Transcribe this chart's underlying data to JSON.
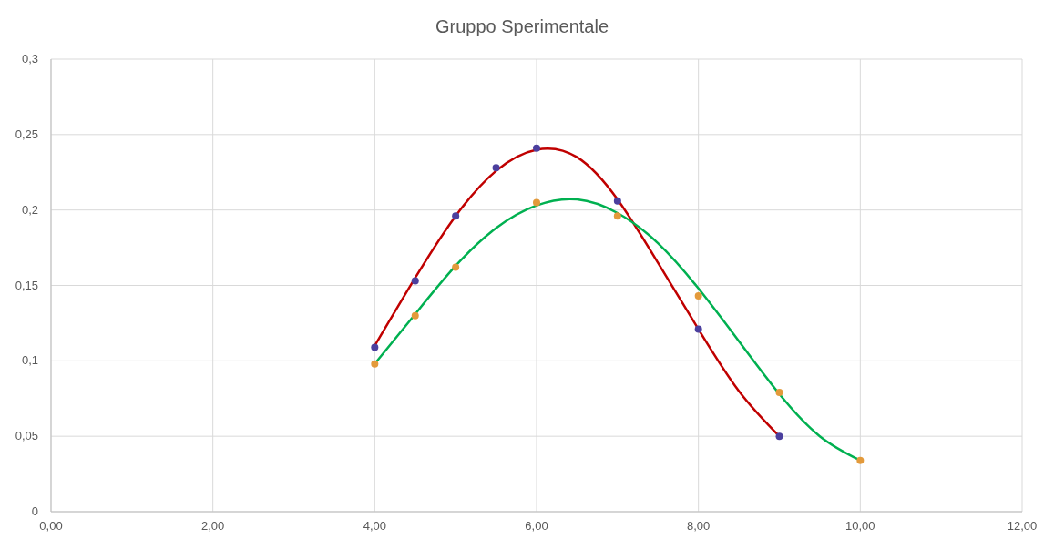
{
  "chart_data": {
    "type": "scatter",
    "title": "Gruppo Sperimentale",
    "xlim": [
      0,
      12
    ],
    "xticks": [
      {
        "value": 0,
        "label": "0,00"
      },
      {
        "value": 2,
        "label": "2,00"
      },
      {
        "value": 4,
        "label": "4,00"
      },
      {
        "value": 6,
        "label": "6,00"
      },
      {
        "value": 8,
        "label": "8,00"
      },
      {
        "value": 10,
        "label": "10,00"
      },
      {
        "value": 12,
        "label": "12,00"
      }
    ],
    "ylim": [
      0,
      0.3
    ],
    "yticks": [
      0,
      {
        "value": 0.05,
        "label": "0,05"
      },
      {
        "value": 0.1,
        "label": "0,1"
      },
      {
        "value": 0.15,
        "label": "0,15"
      },
      {
        "value": 0.2,
        "label": "0,2"
      },
      {
        "value": 0.25,
        "label": "0,25"
      },
      {
        "value": 0.3,
        "label": "0,3"
      }
    ],
    "grid": true,
    "series": [
      {
        "type": "line",
        "color": "#c00000",
        "marker": "none",
        "x": [
          4,
          4.5,
          5,
          5.5,
          6,
          6.5,
          7,
          7.5,
          8,
          8.5,
          9
        ],
        "values": [
          0.11,
          0.155,
          0.196,
          0.226,
          0.24,
          0.235,
          0.207,
          0.165,
          0.121,
          0.08,
          0.05
        ]
      },
      {
        "type": "line",
        "color": "#00b050",
        "marker": "none",
        "x": [
          4,
          4.5,
          5,
          5.5,
          6,
          6.5,
          7,
          7.5,
          8,
          8.5,
          9,
          9.5,
          10
        ],
        "values": [
          0.098,
          0.131,
          0.163,
          0.188,
          0.203,
          0.207,
          0.198,
          0.178,
          0.148,
          0.113,
          0.078,
          0.05,
          0.034
        ]
      },
      {
        "color": "#4b3f9e",
        "marker": "circle",
        "x": [
          4,
          4.5,
          5,
          5.5,
          6,
          7,
          8,
          9
        ],
        "values": [
          0.109,
          0.153,
          0.196,
          0.228,
          0.241,
          0.206,
          0.121,
          0.05
        ]
      },
      {
        "color": "#e39a3b",
        "marker": "circle",
        "x": [
          4,
          4.5,
          5,
          6,
          7,
          8,
          9,
          10
        ],
        "values": [
          0.098,
          0.13,
          0.162,
          0.205,
          0.196,
          0.143,
          0.079,
          0.034
        ]
      }
    ]
  }
}
